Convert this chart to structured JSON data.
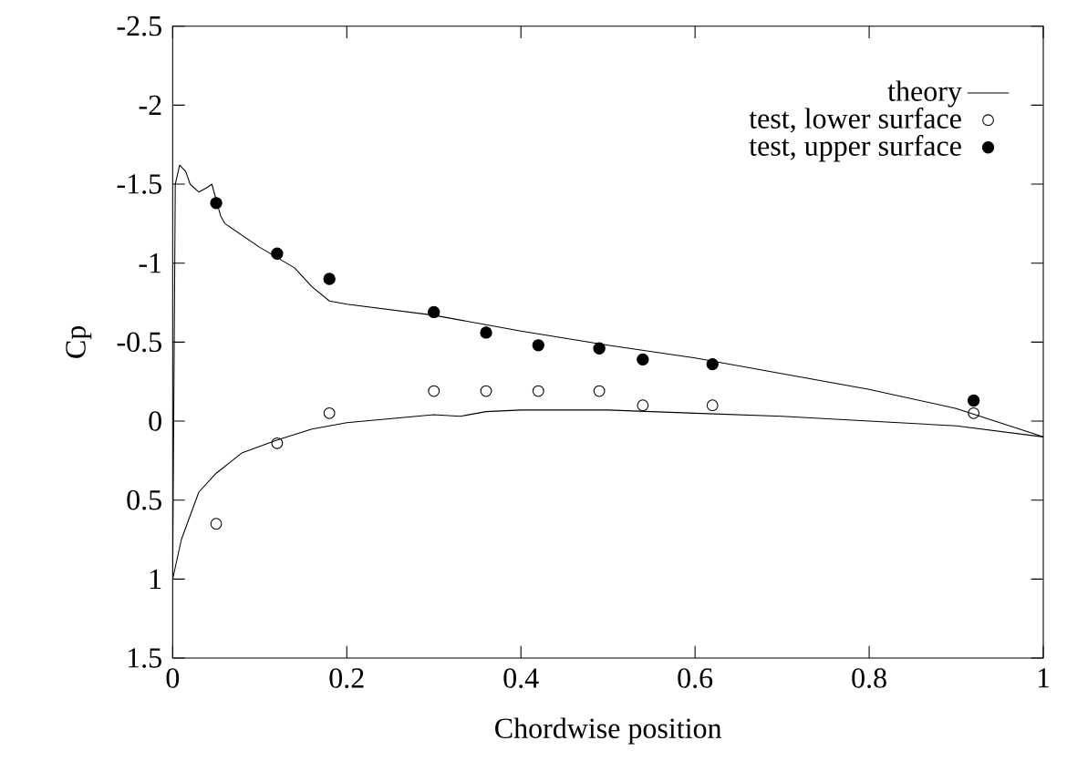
{
  "chart_data": {
    "type": "scatter",
    "xlabel": "Chordwise position",
    "ylabel": "Cp",
    "xlim": [
      0,
      1
    ],
    "xticks": [
      0,
      0.2,
      0.4,
      0.6,
      0.8,
      1
    ],
    "ylim": [
      1.5,
      -2.5
    ],
    "yticks": [
      1.5,
      1,
      0.5,
      0,
      -0.5,
      -1,
      -1.5,
      -2,
      -2.5
    ],
    "grid": false,
    "legend": "top right",
    "series": [
      {
        "name": "theory",
        "type": "line",
        "color": "#000000",
        "marker": "none",
        "line_style": "solid",
        "x": [
          0,
          0.003,
          0.008,
          0.015,
          0.02,
          0.03,
          0.04,
          0.045,
          0.055,
          0.06,
          0.1,
          0.14,
          0.16,
          0.18,
          0.2,
          0.3,
          0.4,
          0.5,
          0.6,
          0.7,
          0.8,
          0.9,
          1
        ],
        "values": [
          1.0,
          -1.5,
          -1.62,
          -1.58,
          -1.5,
          -1.45,
          -1.48,
          -1.5,
          -1.3,
          -1.25,
          -1.1,
          -0.97,
          -0.85,
          -0.76,
          -0.74,
          -0.67,
          -0.57,
          -0.48,
          -0.4,
          -0.3,
          -0.2,
          -0.08,
          0.1
        ]
      },
      {
        "type": "line",
        "color": "#000000",
        "marker": "none",
        "line_style": "solid",
        "x": [
          0,
          0.01,
          0.03,
          0.05,
          0.08,
          0.12,
          0.16,
          0.2,
          0.3,
          0.33,
          0.36,
          0.4,
          0.5,
          0.6,
          0.7,
          0.8,
          0.9,
          1
        ],
        "values": [
          1.0,
          0.75,
          0.45,
          0.33,
          0.2,
          0.12,
          0.05,
          0.01,
          -0.04,
          -0.03,
          -0.06,
          -0.07,
          -0.07,
          -0.05,
          -0.03,
          0.0,
          0.03,
          0.1
        ]
      },
      {
        "name": "test, lower surface",
        "color": "#000000",
        "marker": "circle",
        "x": [
          0.05,
          0.12,
          0.18,
          0.3,
          0.36,
          0.42,
          0.49,
          0.54,
          0.62,
          0.92
        ],
        "values": [
          0.65,
          0.14,
          -0.05,
          -0.19,
          -0.19,
          -0.19,
          -0.19,
          -0.1,
          -0.1,
          -0.05
        ]
      },
      {
        "name": "test, upper surface",
        "color": "#000000",
        "marker": "circle",
        "x": [
          0.05,
          0.12,
          0.18,
          0.3,
          0.36,
          0.42,
          0.49,
          0.54,
          0.62,
          0.92
        ],
        "values": [
          -1.38,
          -1.06,
          -0.9,
          -0.69,
          -0.56,
          -0.48,
          -0.46,
          -0.39,
          -0.36,
          -0.13
        ]
      }
    ]
  }
}
